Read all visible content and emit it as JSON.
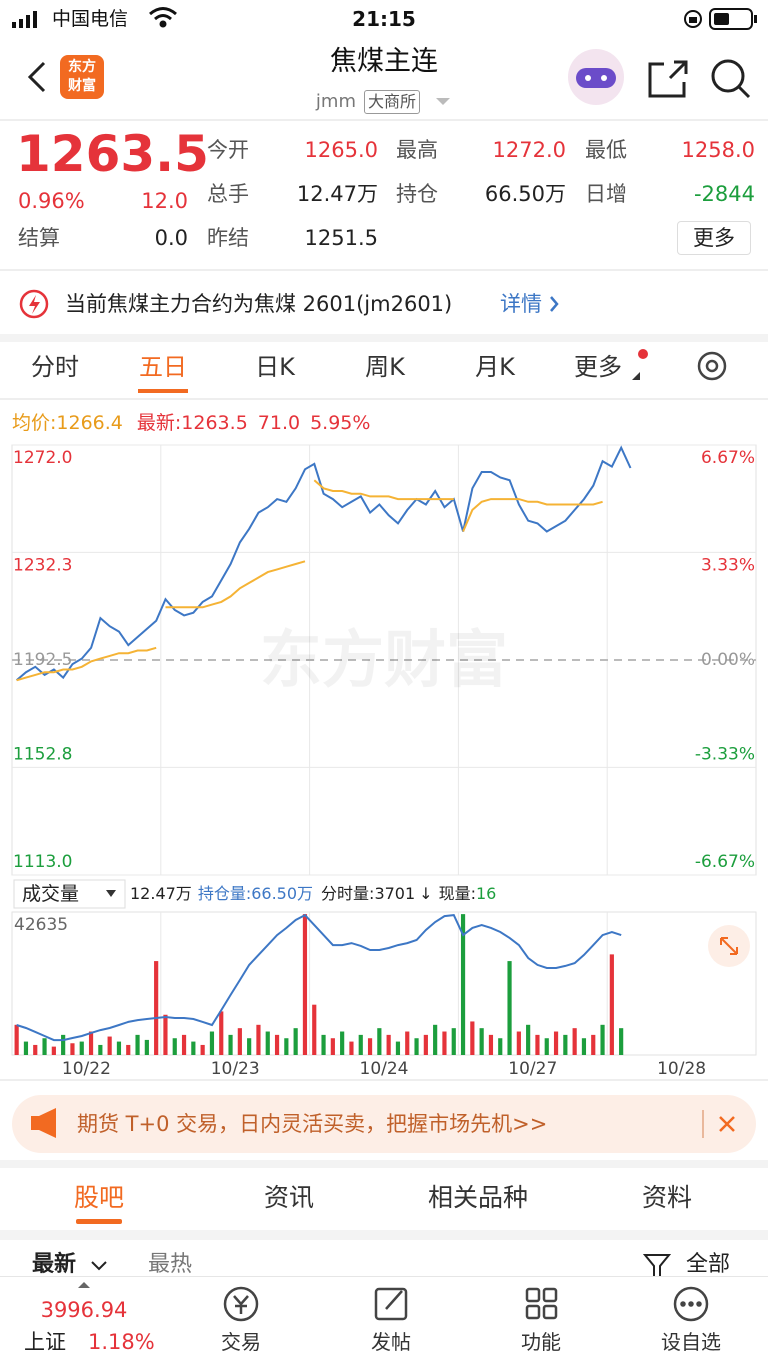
{
  "status_bar": {
    "carrier": "中国电信",
    "time": "21:15"
  },
  "header": {
    "logo": [
      "东方",
      "财富"
    ],
    "title": "焦煤主连",
    "code": "jmm",
    "exchange": "大商所"
  },
  "quote": {
    "price": "1263.5",
    "change_pct": "0.96%",
    "change": "12.0",
    "settle_label": "结算",
    "settle": "0.0",
    "more": "更多",
    "fields": [
      {
        "label": "今开",
        "value": "1265.0",
        "color": "#e5333a"
      },
      {
        "label": "最高",
        "value": "1272.0",
        "color": "#e5333a"
      },
      {
        "label": "最低",
        "value": "1258.0",
        "color": "#e5333a"
      },
      {
        "label": "总手",
        "value": "12.47万",
        "color": "#222222"
      },
      {
        "label": "持仓",
        "value": "66.50万",
        "color": "#222222"
      },
      {
        "label": "日增",
        "value": "-2844",
        "color": "#1c9e3d"
      },
      {
        "label": "昨结",
        "value": "1251.5",
        "color": "#222222"
      }
    ]
  },
  "notice": {
    "text": "当前焦煤主力合约为焦煤 2601(jm2601)",
    "link": "详情"
  },
  "tabs": [
    "分时",
    "五日",
    "日K",
    "周K",
    "月K",
    "更多"
  ],
  "active_tab": 1,
  "chart_legend": {
    "avg_label": "均价:",
    "avg": "1266.4",
    "latest_label": "最新:",
    "latest": "1263.5",
    "change": "71.0",
    "change_pct": "5.95%"
  },
  "watermark": "东方财富",
  "chart_data": [
    {
      "type": "line",
      "ylim": [
        1113,
        1272
      ],
      "yticks": [
        {
          "value": 1113,
          "label": "1113.0"
        },
        1152.8,
        1192.5,
        1232.3,
        {
          "value": 1272,
          "label": "1272.0"
        }
      ],
      "y2lim": [
        -6.67,
        6.67
      ],
      "y2ticks": [
        {
          "value": -6.67,
          "label": "-6.67%"
        },
        {
          "value": -3.33,
          "label": "-3.33%"
        },
        {
          "value": 0,
          "label": "0.00%"
        },
        {
          "value": 3.33,
          "label": "3.33%"
        },
        {
          "value": 6.67,
          "label": "6.67%"
        }
      ],
      "grid": true,
      "series": [
        {
          "name": "最新",
          "color": "#3d77c5",
          "connect_days": true,
          "values": [
            [
              1185,
              1188,
              1190,
              1187,
              1189,
              1186,
              1191,
              1193,
              1197,
              1208,
              1205,
              1203,
              1198,
              1201,
              1204,
              1207
            ],
            [
              1215,
              1211,
              1209,
              1210,
              1214,
              1216,
              1222,
              1228,
              1236,
              1241,
              1247,
              1249,
              1252,
              1251,
              1256,
              1263
            ],
            [
              1265,
              1254,
              1252,
              1249,
              1251,
              1253,
              1247,
              1250,
              1246,
              1243,
              1248,
              1252,
              1250,
              1255,
              1249,
              1252
            ],
            [
              1240,
              1256,
              1262,
              1262,
              1260,
              1259,
              1250,
              1244,
              1243,
              1240,
              1242,
              1244,
              1248,
              1252,
              1257,
              1266
            ],
            [
              1264,
              1271,
              1263.5
            ]
          ]
        },
        {
          "name": "均价",
          "color": "#f5b335",
          "connect_days": false,
          "values": [
            [
              1185,
              1186,
              1187,
              1188,
              1188,
              1189,
              1189,
              1190,
              1192,
              1193,
              1194,
              1195,
              1195,
              1196,
              1196,
              1197
            ],
            [
              1212,
              1212,
              1212,
              1212,
              1212,
              1213,
              1214,
              1216,
              1219,
              1221,
              1223,
              1225,
              1226,
              1227,
              1228,
              1229
            ],
            [
              1259,
              1256,
              1255,
              1255,
              1254,
              1254,
              1253,
              1253,
              1253,
              1252,
              1252,
              1252,
              1252,
              1252,
              1252,
              1252
            ],
            [
              1240,
              1248,
              1251,
              1252,
              1252,
              1252,
              1252,
              1251,
              1251,
              1250,
              1250,
              1250,
              1250,
              1250,
              1250,
              1251
            ],
            []
          ]
        }
      ]
    },
    {
      "type": "bar",
      "categories": [
        "10/22",
        "10/23",
        "10/24",
        "10/27",
        "10/28"
      ],
      "ylim": [
        0,
        42635
      ],
      "yticks": [
        42635
      ],
      "y2lim": [
        60,
        67
      ],
      "series": [
        {
          "name": "成交量",
          "values": [
            [
              9000,
              4000,
              3000,
              5000,
              2500,
              6000,
              3500,
              4000,
              7000,
              3000,
              5500,
              4000,
              3000,
              6000,
              4500,
              28000
            ],
            [
              12000,
              5000,
              6000,
              4000,
              3000,
              7000,
              13000,
              6000,
              8000,
              5000,
              9000,
              7000,
              6000,
              5000,
              8000,
              42000
            ],
            [
              15000,
              6000,
              5000,
              7000,
              4000,
              6000,
              5000,
              8000,
              6000,
              4000,
              7000,
              5000,
              6000,
              9000,
              7000,
              8000
            ],
            [
              42000,
              10000,
              8000,
              6000,
              5000,
              28000,
              7000,
              9000,
              6000,
              5000,
              7000,
              6000,
              8000,
              5000,
              6000,
              9000
            ],
            [
              30000,
              8000
            ]
          ],
          "colors": [
            [
              "#e5333a",
              "#1c9e3d",
              "#e5333a",
              "#1c9e3d",
              "#e5333a",
              "#1c9e3d",
              "#e5333a",
              "#1c9e3d",
              "#e5333a",
              "#1c9e3d",
              "#e5333a",
              "#1c9e3d",
              "#e5333a",
              "#1c9e3d",
              "#1c9e3d",
              "#e5333a"
            ],
            [
              "#e5333a",
              "#1c9e3d",
              "#e5333a",
              "#1c9e3d",
              "#e5333a",
              "#1c9e3d",
              "#e5333a",
              "#1c9e3d",
              "#e5333a",
              "#1c9e3d",
              "#e5333a",
              "#1c9e3d",
              "#e5333a",
              "#1c9e3d",
              "#1c9e3d",
              "#e5333a"
            ],
            [
              "#e5333a",
              "#1c9e3d",
              "#e5333a",
              "#1c9e3d",
              "#e5333a",
              "#1c9e3d",
              "#e5333a",
              "#1c9e3d",
              "#e5333a",
              "#1c9e3d",
              "#e5333a",
              "#1c9e3d",
              "#e5333a",
              "#1c9e3d",
              "#e5333a",
              "#1c9e3d"
            ],
            [
              "#1c9e3d",
              "#e5333a",
              "#1c9e3d",
              "#e5333a",
              "#1c9e3d",
              "#1c9e3d",
              "#e5333a",
              "#1c9e3d",
              "#e5333a",
              "#1c9e3d",
              "#e5333a",
              "#1c9e3d",
              "#e5333a",
              "#1c9e3d",
              "#e5333a",
              "#1c9e3d"
            ],
            [
              "#e5333a",
              "#1c9e3d"
            ]
          ]
        },
        {
          "name": "持仓量",
          "color": "#3d77c5",
          "axis": "y2",
          "connect_days": true,
          "values": [
            [
              61.47,
              61.32,
              61.13,
              60.93,
              60.73,
              60.73,
              60.83,
              60.93,
              61.08,
              61.22,
              61.32,
              61.47,
              61.62,
              61.71,
              61.76,
              61.81
            ],
            [
              61.86,
              61.81,
              61.81,
              61.76,
              61.62,
              61.47,
              62.2,
              62.94,
              63.67,
              64.41,
              64.9,
              65.38,
              65.87,
              66.22,
              66.61,
              66.85
            ],
            [
              66.36,
              65.87,
              65.38,
              65.38,
              65.48,
              65.34,
              65.14,
              65.14,
              65.24,
              65.38,
              65.48,
              65.63,
              66.12,
              66.51,
              66.8,
              66.85
            ],
            [
              65.87,
              66.22,
              66.36,
              66.22,
              66.02,
              65.73,
              65.38,
              64.75,
              64.41,
              64.26,
              64.26,
              64.36,
              64.5,
              64.9,
              65.38,
              65.87
            ],
            [
              66.02,
              65.87
            ]
          ]
        }
      ]
    }
  ],
  "volume_bar": {
    "selector": "成交量",
    "volume": "12.47万",
    "oi_label": "持仓量:",
    "oi": "66.50万",
    "tick_label": "分时量:",
    "tick": "3701",
    "arrow": "↓",
    "now_label": "现量:",
    "now": "16"
  },
  "banner": {
    "text": "期货 T+0 交易，日内灵活买卖，把握市场先机>>"
  },
  "section_tabs": [
    "股吧",
    "资讯",
    "相关品种",
    "资料"
  ],
  "sort": {
    "latest": "最新",
    "hot": "最热",
    "all": "全部"
  },
  "bottom_bar": {
    "index_value": "3996.94",
    "index_name": "上证",
    "index_change": "1.18%",
    "items": [
      "交易",
      "发帖",
      "功能",
      "设自选"
    ]
  }
}
